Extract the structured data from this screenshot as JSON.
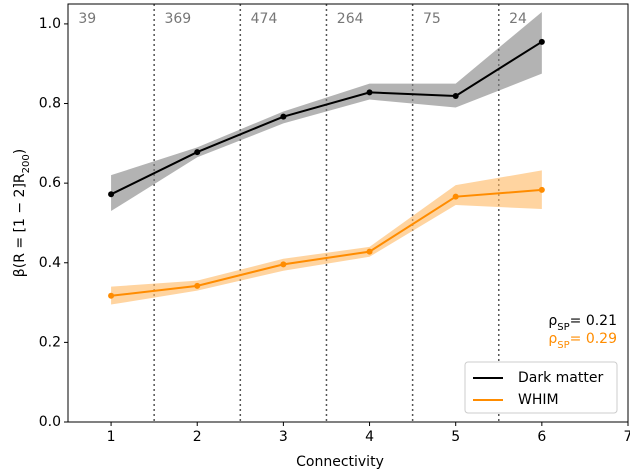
{
  "chart_data": {
    "type": "line",
    "xlabel": "Connectivity",
    "ylabel": {
      "main": "β(R = [1 − 2]R",
      "sub": "200",
      "end": ")"
    },
    "x": [
      1,
      2,
      3,
      4,
      5,
      6
    ],
    "series": [
      {
        "name": "Dark matter",
        "color": "#000000",
        "band_color": "#808080",
        "values": [
          0.572,
          0.678,
          0.767,
          0.828,
          0.819,
          0.955
        ],
        "lower": [
          0.53,
          0.665,
          0.75,
          0.81,
          0.79,
          0.875
        ],
        "upper": [
          0.62,
          0.69,
          0.78,
          0.85,
          0.85,
          1.03
        ]
      },
      {
        "name": "WHIM",
        "color": "#ff8c00",
        "band_color": "#ffb860",
        "values": [
          0.317,
          0.342,
          0.396,
          0.428,
          0.566,
          0.583
        ],
        "lower": [
          0.295,
          0.33,
          0.38,
          0.415,
          0.545,
          0.535
        ],
        "upper": [
          0.34,
          0.355,
          0.41,
          0.44,
          0.595,
          0.632
        ]
      }
    ],
    "counts": [
      "39",
      "369",
      "474",
      "264",
      "75",
      "24"
    ],
    "vlines": [
      1.5,
      2.5,
      3.5,
      4.5,
      5.5
    ],
    "annotations": [
      {
        "symbol": "ρ",
        "sub": "SP",
        "text": "= 0.21",
        "color": "#000000"
      },
      {
        "symbol": "ρ",
        "sub": "SP",
        "text": "= 0.29",
        "color": "#ff8c00"
      }
    ],
    "xlim": [
      0.5,
      7
    ],
    "ylim": [
      0,
      1.05
    ],
    "xticks": [
      1,
      2,
      3,
      4,
      5,
      6,
      7
    ],
    "yticks": [
      {
        "value": 0,
        "label": "0.0"
      },
      {
        "value": 0.2,
        "label": "0.2"
      },
      {
        "value": 0.4,
        "label": "0.4"
      },
      {
        "value": 0.6,
        "label": "0.6"
      },
      {
        "value": 0.8,
        "label": "0.8"
      },
      {
        "value": 1,
        "label": "1.0"
      }
    ],
    "legend": "lower right"
  }
}
